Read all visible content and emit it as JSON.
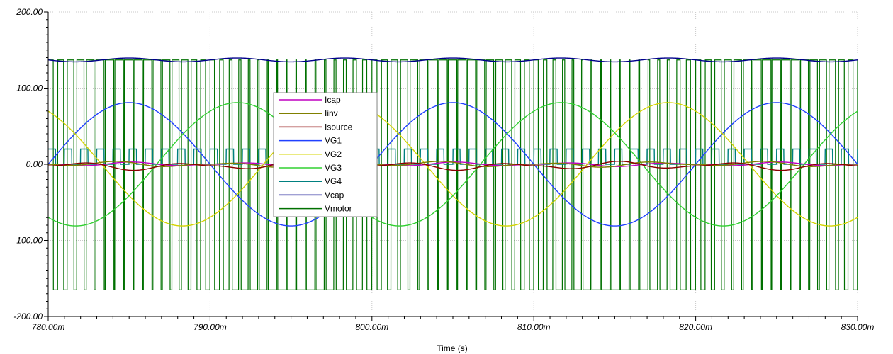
{
  "chart_data": {
    "type": "line",
    "title": "",
    "xlabel": "Time (s)",
    "ylabel": "",
    "xlim": [
      0.78,
      0.83
    ],
    "ylim": [
      -200,
      200
    ],
    "x_ticks": [
      {
        "value": 0.78,
        "label": "780.00m"
      },
      {
        "value": 0.79,
        "label": "790.00m"
      },
      {
        "value": 0.8,
        "label": "800.00m"
      },
      {
        "value": 0.81,
        "label": "810.00m"
      },
      {
        "value": 0.82,
        "label": "820.00m"
      },
      {
        "value": 0.83,
        "label": "830.00m"
      }
    ],
    "y_ticks": [
      {
        "value": 200,
        "label": "200.00"
      },
      {
        "value": 100,
        "label": "100.00"
      },
      {
        "value": 0,
        "label": "0.00"
      },
      {
        "value": -100,
        "label": "-100.00"
      },
      {
        "value": -200,
        "label": "-200.00"
      }
    ],
    "grid": true,
    "legend_position": "center",
    "series": [
      {
        "name": "Icap",
        "color": "#c000c0",
        "kind": "ripple",
        "amplitude": 3,
        "offset": 0
      },
      {
        "name": "Iinv",
        "color": "#808000",
        "kind": "ripple",
        "amplitude": 4,
        "offset": 0
      },
      {
        "name": "Isource",
        "color": "#8b0000",
        "kind": "ripple",
        "amplitude": 6,
        "offset": -2
      },
      {
        "name": "VG1",
        "color": "#2040ff",
        "kind": "sine",
        "amplitude": 81,
        "frequency_hz": 50,
        "peak_time": 0.785,
        "offset": 0
      },
      {
        "name": "VG2",
        "color": "#d4d400",
        "kind": "sine",
        "amplitude": 81,
        "frequency_hz": 50,
        "peak_time": 0.7983,
        "offset": 0
      },
      {
        "name": "VG3",
        "color": "#30d030",
        "kind": "sine",
        "amplitude": 81,
        "frequency_hz": 50,
        "peak_time": 0.7917,
        "offset": 0
      },
      {
        "name": "VG4",
        "color": "#008080",
        "kind": "square",
        "high": 20,
        "low": 0,
        "frequency_hz": 1000
      },
      {
        "name": "Vcap",
        "color": "#00008b",
        "kind": "ripple_dc",
        "offset": 137,
        "amplitude": 2.5,
        "ripple_hz": 150
      },
      {
        "name": "Vmotor",
        "color": "#007000",
        "kind": "pwm",
        "high": 137,
        "low": -165,
        "frequency_hz": 1700
      }
    ]
  }
}
